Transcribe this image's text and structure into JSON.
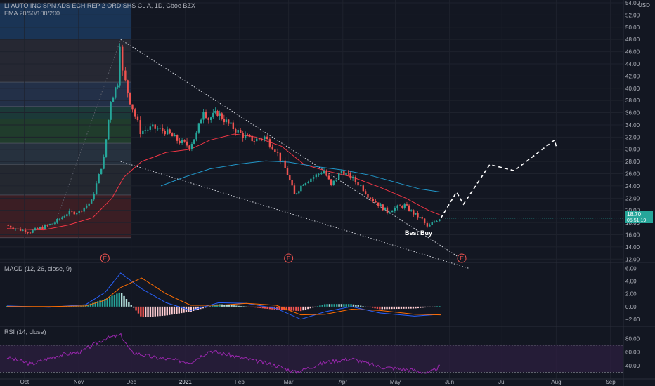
{
  "header": {
    "symbol_title": "LI AUTO INC SPN ADS ECH REP 2 ORD SHS CL A, 1D, Cboe BZX",
    "ema_label": "EMA 20/50/100/200",
    "currency": "USD"
  },
  "macd_label": "MACD (12, 26, close, 9)",
  "rsi_label": "RSI (14, close)",
  "price_badge": {
    "price": "18.70",
    "countdown": "05:51:19"
  },
  "annotation": {
    "text": "Best Buy"
  },
  "colors": {
    "background": "#131722",
    "up": "#26a69a",
    "down": "#ef5350",
    "ema_fast": "#f23645",
    "ema_slow": "#2196c8",
    "rsi_line": "#9c27b0",
    "rsi_band": "#2a1e3d",
    "macd_line": "#2962ff",
    "signal_line": "#ff6d00",
    "badge": "#26a69a"
  },
  "chart_data": [
    {
      "type": "candlestick",
      "pane": "price",
      "y_axis": {
        "min": 11,
        "max": 54,
        "ticks": [
          "12.00",
          "14.00",
          "16.00",
          "18.00",
          "20.00",
          "22.00",
          "24.00",
          "26.00",
          "28.00",
          "30.00",
          "32.00",
          "34.00",
          "36.00",
          "38.00",
          "40.00",
          "42.00",
          "44.00",
          "46.00",
          "48.00",
          "50.00",
          "52.00",
          "54.00"
        ]
      },
      "x_axis": {
        "labels": [
          "Oct",
          "Nov",
          "Dec",
          "2021",
          "Feb",
          "Mar",
          "Apr",
          "May",
          "Jun",
          "Jul",
          "Aug",
          "Sep"
        ],
        "label_dates": [
          "2020-10-01",
          "2020-11-01",
          "2020-12-01",
          "2021-01-01",
          "2021-02-01",
          "2021-03-01",
          "2021-04-01",
          "2021-05-01",
          "2021-06-01",
          "2021-07-01",
          "2021-08-01",
          "2021-09-01"
        ]
      },
      "close_series": [
        [
          "2020-09-21",
          17.6
        ],
        [
          "2020-09-28",
          16.9
        ],
        [
          "2020-10-05",
          16.5
        ],
        [
          "2020-10-12",
          17.2
        ],
        [
          "2020-10-19",
          18.0
        ],
        [
          "2020-10-26",
          19.5
        ],
        [
          "2020-11-02",
          19.8
        ],
        [
          "2020-11-09",
          21.5
        ],
        [
          "2020-11-16",
          28.5
        ],
        [
          "2020-11-20",
          38.0
        ],
        [
          "2020-11-24",
          41.0
        ],
        [
          "2020-11-25",
          47.5
        ],
        [
          "2020-11-27",
          42.5
        ],
        [
          "2020-12-01",
          38.0
        ],
        [
          "2020-12-07",
          33.0
        ],
        [
          "2020-12-14",
          33.5
        ],
        [
          "2020-12-21",
          33.0
        ],
        [
          "2020-12-28",
          31.5
        ],
        [
          "2021-01-04",
          30.5
        ],
        [
          "2021-01-08",
          32.5
        ],
        [
          "2021-01-12",
          36.5
        ],
        [
          "2021-01-15",
          35.0
        ],
        [
          "2021-01-20",
          36.0
        ],
        [
          "2021-01-25",
          34.5
        ],
        [
          "2021-01-29",
          33.5
        ],
        [
          "2021-02-05",
          32.0
        ],
        [
          "2021-02-10",
          31.5
        ],
        [
          "2021-02-16",
          32.0
        ],
        [
          "2021-02-22",
          30.0
        ],
        [
          "2021-02-25",
          28.5
        ],
        [
          "2021-03-01",
          26.0
        ],
        [
          "2021-03-05",
          22.5
        ],
        [
          "2021-03-10",
          24.5
        ],
        [
          "2021-03-16",
          25.5
        ],
        [
          "2021-03-22",
          26.5
        ],
        [
          "2021-03-26",
          24.0
        ],
        [
          "2021-04-01",
          26.5
        ],
        [
          "2021-04-06",
          25.5
        ],
        [
          "2021-04-12",
          24.0
        ],
        [
          "2021-04-16",
          22.5
        ],
        [
          "2021-04-22",
          21.0
        ],
        [
          "2021-04-27",
          19.8
        ],
        [
          "2021-05-03",
          20.5
        ],
        [
          "2021-05-07",
          20.8
        ],
        [
          "2021-05-12",
          19.5
        ],
        [
          "2021-05-17",
          18.5
        ],
        [
          "2021-05-20",
          17.2
        ],
        [
          "2021-05-24",
          18.2
        ],
        [
          "2021-05-27",
          18.7
        ]
      ],
      "ema_fast": [
        [
          "2020-09-21",
          17.0
        ],
        [
          "2020-10-12",
          16.8
        ],
        [
          "2020-10-26",
          17.6
        ],
        [
          "2020-11-09",
          18.8
        ],
        [
          "2020-11-20",
          22.0
        ],
        [
          "2020-11-27",
          25.5
        ],
        [
          "2020-12-07",
          28.0
        ],
        [
          "2020-12-21",
          29.5
        ],
        [
          "2021-01-04",
          30.0
        ],
        [
          "2021-01-15",
          31.5
        ],
        [
          "2021-01-29",
          32.5
        ],
        [
          "2021-02-10",
          32.0
        ],
        [
          "2021-02-25",
          30.5
        ],
        [
          "2021-03-10",
          27.5
        ],
        [
          "2021-03-22",
          26.5
        ],
        [
          "2021-04-06",
          25.5
        ],
        [
          "2021-04-22",
          23.8
        ],
        [
          "2021-05-07",
          22.0
        ],
        [
          "2021-05-20",
          20.0
        ],
        [
          "2021-05-27",
          19.2
        ]
      ],
      "ema_slow": [
        [
          "2020-12-18",
          24.0
        ],
        [
          "2021-01-01",
          25.5
        ],
        [
          "2021-01-15",
          26.8
        ],
        [
          "2021-02-01",
          27.6
        ],
        [
          "2021-02-16",
          28.1
        ],
        [
          "2021-03-01",
          27.9
        ],
        [
          "2021-03-16",
          27.2
        ],
        [
          "2021-04-01",
          26.6
        ],
        [
          "2021-04-16",
          25.8
        ],
        [
          "2021-05-01",
          24.6
        ],
        [
          "2021-05-15",
          23.5
        ],
        [
          "2021-05-27",
          23.0
        ]
      ],
      "trendlines": [
        {
          "from": [
            "2020-11-25",
            48.0
          ],
          "to": [
            "2021-06-08",
            12.0
          ]
        },
        {
          "from": [
            "2020-11-25",
            28.0
          ],
          "to": [
            "2021-06-12",
            10.5
          ]
        },
        {
          "from": [
            "2020-10-20",
            19.0
          ],
          "to": [
            "2020-11-25",
            48.0
          ]
        }
      ],
      "projection": [
        [
          "2021-05-27",
          18.7
        ],
        [
          "2021-06-05",
          23.0
        ],
        [
          "2021-06-09",
          21.0
        ],
        [
          "2021-06-24",
          27.5
        ],
        [
          "2021-07-08",
          26.5
        ],
        [
          "2021-07-31",
          31.5
        ],
        [
          "2021-08-01",
          30.5
        ]
      ],
      "fib_levels": [
        48.0,
        41.0,
        37.0,
        35.0,
        31.0,
        27.5,
        22.5,
        15.5
      ],
      "earnings_markers": [
        [
          "2020-11-16",
          "E"
        ],
        [
          "2021-03-01",
          "E"
        ],
        [
          "2021-06-08",
          "E"
        ]
      ]
    },
    {
      "type": "macd",
      "pane": "macd",
      "y_axis": {
        "min": -3,
        "max": 6.5,
        "ticks": [
          "−2.00",
          "0.00",
          "2.00",
          "4.00",
          "6.00"
        ]
      },
      "macd": [
        [
          "2020-09-21",
          0.1
        ],
        [
          "2020-10-15",
          -0.1
        ],
        [
          "2020-11-05",
          0.3
        ],
        [
          "2020-11-16",
          2.2
        ],
        [
          "2020-11-25",
          5.3
        ],
        [
          "2020-12-07",
          2.8
        ],
        [
          "2020-12-21",
          0.6
        ],
        [
          "2021-01-04",
          -0.6
        ],
        [
          "2021-01-20",
          0.6
        ],
        [
          "2021-02-05",
          0.5
        ],
        [
          "2021-02-22",
          -0.3
        ],
        [
          "2021-03-08",
          -2.0
        ],
        [
          "2021-03-22",
          -0.8
        ],
        [
          "2021-04-06",
          0.0
        ],
        [
          "2021-04-22",
          -1.0
        ],
        [
          "2021-05-12",
          -1.5
        ],
        [
          "2021-05-27",
          -1.2
        ]
      ],
      "signal": [
        [
          "2020-09-21",
          0.0
        ],
        [
          "2020-10-15",
          0.0
        ],
        [
          "2020-11-05",
          0.1
        ],
        [
          "2020-11-16",
          1.0
        ],
        [
          "2020-11-25",
          3.0
        ],
        [
          "2020-12-07",
          4.5
        ],
        [
          "2020-12-21",
          2.0
        ],
        [
          "2021-01-04",
          0.2
        ],
        [
          "2021-01-20",
          0.2
        ],
        [
          "2021-02-05",
          0.5
        ],
        [
          "2021-02-22",
          0.2
        ],
        [
          "2021-03-08",
          -1.3
        ],
        [
          "2021-03-22",
          -1.2
        ],
        [
          "2021-04-06",
          -0.4
        ],
        [
          "2021-04-22",
          -0.6
        ],
        [
          "2021-05-12",
          -1.2
        ],
        [
          "2021-05-27",
          -1.3
        ]
      ]
    },
    {
      "type": "rsi",
      "pane": "rsi",
      "y_axis": {
        "min": 20,
        "max": 95,
        "ticks": [
          "40.00",
          "60.00",
          "80.00"
        ]
      },
      "bands": [
        30,
        70
      ],
      "rsi": [
        [
          "2020-09-21",
          52
        ],
        [
          "2020-10-05",
          42
        ],
        [
          "2020-10-20",
          55
        ],
        [
          "2020-11-02",
          60
        ],
        [
          "2020-11-16",
          80
        ],
        [
          "2020-11-25",
          85
        ],
        [
          "2020-12-01",
          60
        ],
        [
          "2020-12-14",
          52
        ],
        [
          "2021-01-04",
          45
        ],
        [
          "2021-01-15",
          62
        ],
        [
          "2021-02-01",
          52
        ],
        [
          "2021-02-22",
          40
        ],
        [
          "2021-03-05",
          30
        ],
        [
          "2021-03-22",
          45
        ],
        [
          "2021-04-06",
          50
        ],
        [
          "2021-04-22",
          38
        ],
        [
          "2021-05-12",
          33
        ],
        [
          "2021-05-20",
          28
        ],
        [
          "2021-05-27",
          40
        ]
      ]
    }
  ]
}
